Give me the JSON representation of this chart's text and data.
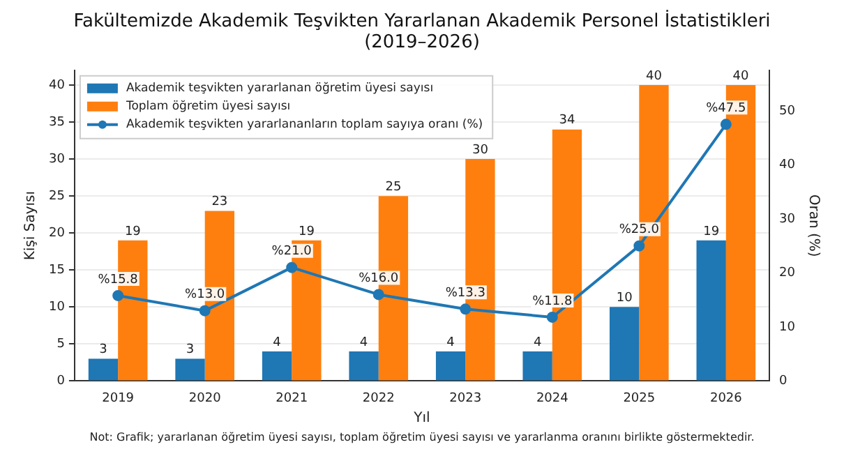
{
  "chart_data": {
    "type": "bar",
    "title": "Fakültemizde Akademik Teşvikten Yararlanan Akademik Personel İstatistikleri\n(2019–2026)",
    "xlabel": "Yıl",
    "ylabel": "Kişi Sayısı",
    "y2label": "Oran (%)",
    "categories": [
      "2019",
      "2020",
      "2021",
      "2022",
      "2023",
      "2024",
      "2025",
      "2026"
    ],
    "series": [
      {
        "name": "Akademik teşvikten yararlanan öğretim üyesi sayısı",
        "color": "#1f77b4",
        "values": [
          3,
          3,
          4,
          4,
          4,
          4,
          10,
          19
        ],
        "value_labels": [
          "3",
          "3",
          "4",
          "4",
          "4",
          "4",
          "10",
          "19"
        ]
      },
      {
        "name": "Toplam öğretim üyesi sayısı",
        "color": "#ff7f0e",
        "values": [
          19,
          23,
          19,
          25,
          30,
          34,
          40,
          40
        ],
        "value_labels": [
          "19",
          "23",
          "19",
          "25",
          "30",
          "34",
          "40",
          "40"
        ]
      },
      {
        "name": "Akademik teşvikten yararlananların toplam sayıya oranı (%)",
        "type": "line",
        "axis": "y2",
        "color": "#1f77b4",
        "marker": "circle",
        "values": [
          15.8,
          13.0,
          21.0,
          16.0,
          13.3,
          11.8,
          25.0,
          47.5
        ],
        "value_labels": [
          "%15.8",
          "%13.0",
          "%21.0",
          "%16.0",
          "%13.3",
          "%11.8",
          "%25.0",
          "%47.5"
        ]
      }
    ],
    "ylim": [
      0,
      42
    ],
    "yticks": [
      0,
      5,
      10,
      15,
      20,
      25,
      30,
      35,
      40
    ],
    "y2lim": [
      0,
      57.5
    ],
    "y2ticks": [
      0,
      10,
      20,
      30,
      40,
      50
    ],
    "grid": "y",
    "legend": "top left",
    "annotations": [
      "Not: Grafik; yararlanan öğretim üyesi sayısı, toplam öğretim üyesi sayısı ve yararlanma oranını birlikte göstermektedir."
    ]
  }
}
